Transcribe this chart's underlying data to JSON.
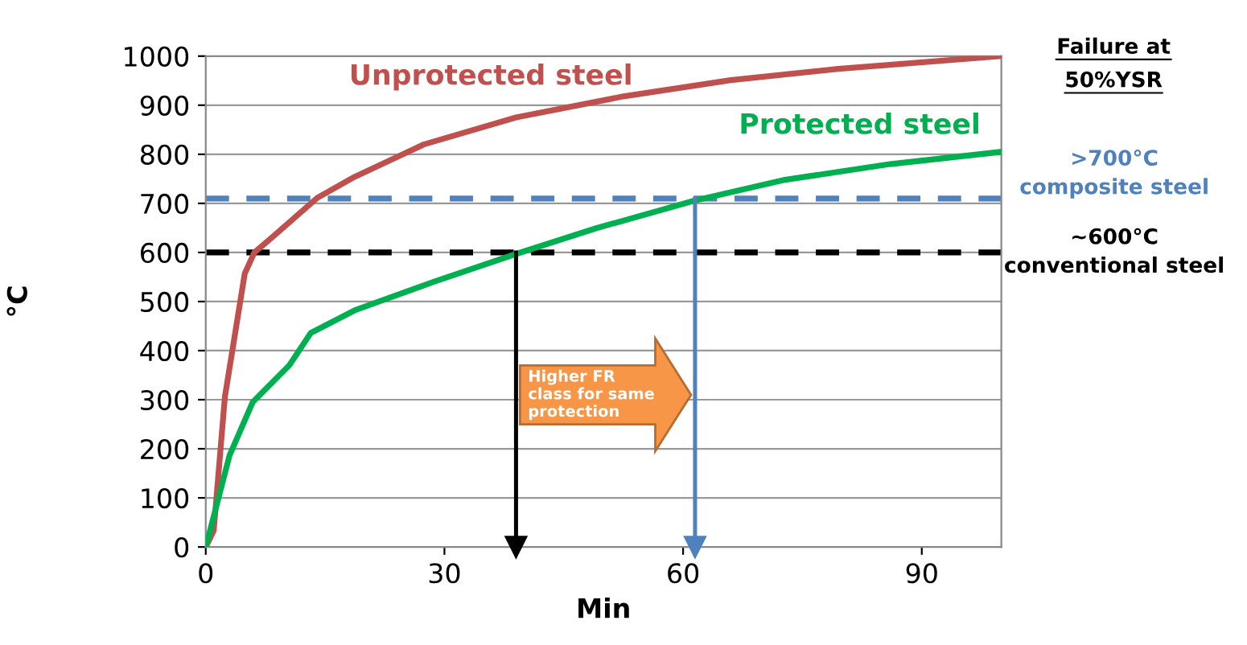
{
  "chart_data": {
    "type": "line",
    "xlabel": "Min",
    "ylabel": "°C",
    "xlim": [
      0,
      100
    ],
    "ylim": [
      0,
      1000
    ],
    "xticks": [
      0,
      30,
      60,
      90
    ],
    "yticks": [
      0,
      100,
      200,
      300,
      400,
      500,
      600,
      700,
      800,
      900,
      1000
    ],
    "grid": "y",
    "legend": false,
    "marker": "none",
    "line_style": "solid",
    "series": [
      {
        "name": "Unprotected steel",
        "color": "#c0504d",
        "x": [
          0,
          1,
          2.4,
          4.9,
          6.1,
          8.5,
          14,
          18.7,
          27.4,
          39,
          52.5,
          66,
          79.5,
          100
        ],
        "values": [
          0,
          33,
          305,
          557,
          600,
          633,
          711,
          754,
          820,
          875,
          918,
          951,
          974,
          1000
        ]
      },
      {
        "name": "Protected steel",
        "color": "#00b050",
        "x": [
          0,
          3,
          5.9,
          10.5,
          13.2,
          18.7,
          28.8,
          39,
          49,
          61.3,
          72.8,
          86,
          100
        ],
        "values": [
          0,
          187,
          295,
          370,
          436,
          482,
          541,
          597,
          649,
          705,
          748,
          780,
          805
        ]
      },
      {
        "color": "#000000",
        "marker": "triangle",
        "x": [
          39,
          39
        ],
        "values": [
          600,
          0
        ]
      },
      {
        "color": "#4f81bd",
        "marker": "triangle",
        "x": [
          61.5,
          61.5
        ],
        "values": [
          710,
          0
        ]
      }
    ],
    "ref_lines": [
      {
        "axis": "y",
        "value": 710,
        "label": ">700°C\ncomposite steel",
        "color": "#4f81bd",
        "line_style": "dashed"
      },
      {
        "axis": "y",
        "value": 600,
        "label": "~600°C\nconventional steel",
        "color": "#000000",
        "line_style": "dashed"
      }
    ],
    "annotations": [
      "Failure at\n50%YSR",
      "Higher FR\nclass for same\nprotection"
    ]
  }
}
